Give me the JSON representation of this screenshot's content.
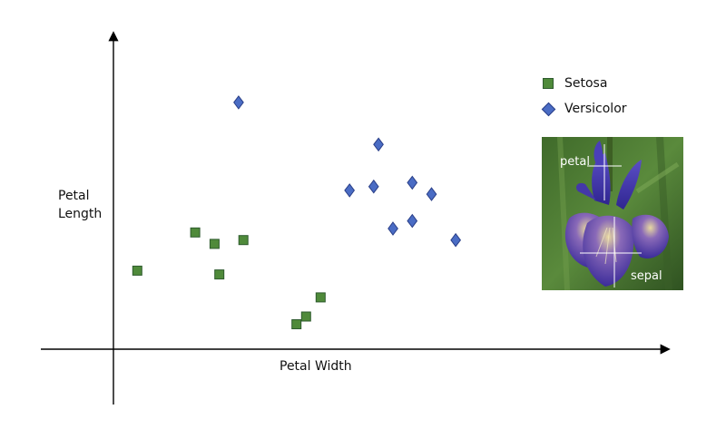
{
  "chart_data": {
    "type": "scatter",
    "xlabel": "Petal Width",
    "ylabel_lines": [
      "Petal",
      "Length"
    ],
    "grid": false,
    "legend_position": "top-right",
    "series": [
      {
        "name": "Setosa",
        "marker": "square",
        "color": "#4f8a3a",
        "points": [
          [
            1.0,
            2.3
          ],
          [
            2.2,
            3.3
          ],
          [
            2.6,
            3.0
          ],
          [
            2.7,
            2.2
          ],
          [
            3.2,
            3.1
          ],
          [
            4.3,
            0.9
          ],
          [
            4.5,
            1.1
          ],
          [
            4.8,
            1.6
          ]
        ]
      },
      {
        "name": "Versicolor",
        "marker": "diamond",
        "color": "#4a6cc4",
        "points": [
          [
            3.1,
            6.7
          ],
          [
            5.4,
            4.4
          ],
          [
            5.9,
            4.5
          ],
          [
            6.0,
            5.6
          ],
          [
            6.3,
            3.4
          ],
          [
            6.7,
            3.6
          ],
          [
            6.7,
            4.6
          ],
          [
            7.1,
            4.3
          ],
          [
            7.6,
            3.1
          ]
        ]
      }
    ],
    "xlim": [
      -1.0,
      12.0
    ],
    "ylim": [
      -1.2,
      8.5
    ]
  },
  "photo": {
    "label_petal": "petal",
    "label_sepal": "sepal",
    "icon": "iris-flower-photo"
  }
}
